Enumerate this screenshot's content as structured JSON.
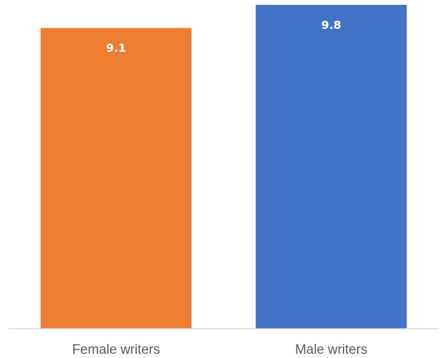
{
  "chart_data": {
    "type": "bar",
    "categories": [
      "Female writers",
      "Male writers"
    ],
    "values": [
      9.1,
      9.8
    ],
    "data_labels": [
      "9.1",
      "9.8"
    ],
    "colors": [
      "#ED7D31",
      "#4472C4"
    ],
    "axis_line_color": "#D9D9D9",
    "ylim": [
      0,
      10
    ],
    "grid": false,
    "legend": "none"
  }
}
